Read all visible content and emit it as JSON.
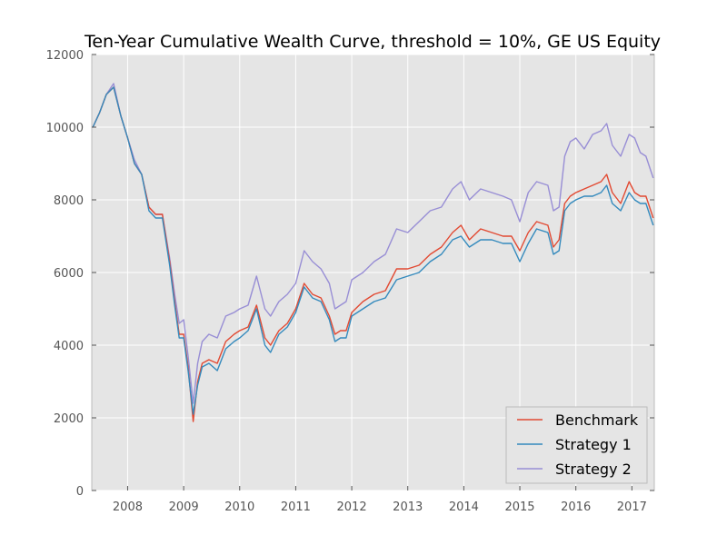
{
  "chart_data": {
    "type": "line",
    "title": "Ten-Year Cumulative Wealth Curve, threshold = 10%, GE US Equity",
    "xlabel": "",
    "ylabel": "",
    "xlim": [
      2007.36,
      2017.4
    ],
    "ylim": [
      0,
      12000
    ],
    "x_ticks": [
      2008,
      2009,
      2010,
      2011,
      2012,
      2013,
      2014,
      2015,
      2016,
      2017
    ],
    "x_tick_labels": [
      "2008",
      "2009",
      "2010",
      "2011",
      "2012",
      "2013",
      "2014",
      "2015",
      "2016",
      "2017"
    ],
    "y_ticks": [
      0,
      2000,
      4000,
      6000,
      8000,
      10000,
      12000
    ],
    "y_tick_labels": [
      "0",
      "2000",
      "4000",
      "6000",
      "8000",
      "10000",
      "12000"
    ],
    "grid": true,
    "legend_position": "lower-right",
    "background": "#e5e5e5",
    "series": [
      {
        "name": "Benchmark",
        "color": "#e24a33",
        "x": [
          2007.38,
          2007.5,
          2007.62,
          2007.75,
          2007.88,
          2008.0,
          2008.12,
          2008.25,
          2008.38,
          2008.5,
          2008.62,
          2008.75,
          2008.84,
          2008.92,
          2009.0,
          2009.08,
          2009.17,
          2009.25,
          2009.33,
          2009.45,
          2009.6,
          2009.75,
          2009.9,
          2010.0,
          2010.15,
          2010.3,
          2010.45,
          2010.55,
          2010.7,
          2010.85,
          2011.0,
          2011.15,
          2011.3,
          2011.45,
          2011.6,
          2011.7,
          2011.8,
          2011.9,
          2012.0,
          2012.2,
          2012.4,
          2012.6,
          2012.8,
          2013.0,
          2013.2,
          2013.4,
          2013.6,
          2013.8,
          2013.95,
          2014.1,
          2014.3,
          2014.5,
          2014.7,
          2014.85,
          2015.0,
          2015.15,
          2015.3,
          2015.5,
          2015.6,
          2015.7,
          2015.8,
          2015.9,
          2016.0,
          2016.15,
          2016.3,
          2016.45,
          2016.55,
          2016.65,
          2016.8,
          2016.95,
          2017.05,
          2017.15,
          2017.25,
          2017.38
        ],
        "values": [
          10000,
          10400,
          10900,
          11100,
          10300,
          9700,
          9000,
          8700,
          7800,
          7600,
          7600,
          6300,
          5200,
          4300,
          4300,
          3400,
          1900,
          3000,
          3500,
          3600,
          3500,
          4100,
          4300,
          4400,
          4500,
          5100,
          4200,
          4000,
          4400,
          4600,
          5000,
          5700,
          5400,
          5300,
          4800,
          4300,
          4400,
          4400,
          4900,
          5200,
          5400,
          5500,
          6100,
          6100,
          6200,
          6500,
          6700,
          7100,
          7300,
          6900,
          7200,
          7100,
          7000,
          7000,
          6600,
          7100,
          7400,
          7300,
          6700,
          6900,
          7900,
          8100,
          8200,
          8300,
          8400,
          8500,
          8700,
          8200,
          7900,
          8500,
          8200,
          8100,
          8100,
          7500
        ]
      },
      {
        "name": "Strategy 1",
        "color": "#348abd",
        "x": [
          2007.38,
          2007.5,
          2007.62,
          2007.75,
          2007.88,
          2008.0,
          2008.12,
          2008.25,
          2008.38,
          2008.5,
          2008.62,
          2008.75,
          2008.84,
          2008.92,
          2009.0,
          2009.08,
          2009.17,
          2009.25,
          2009.33,
          2009.45,
          2009.6,
          2009.75,
          2009.9,
          2010.0,
          2010.15,
          2010.3,
          2010.45,
          2010.55,
          2010.7,
          2010.85,
          2011.0,
          2011.15,
          2011.3,
          2011.45,
          2011.6,
          2011.7,
          2011.8,
          2011.9,
          2012.0,
          2012.2,
          2012.4,
          2012.6,
          2012.8,
          2013.0,
          2013.2,
          2013.4,
          2013.6,
          2013.8,
          2013.95,
          2014.1,
          2014.3,
          2014.5,
          2014.7,
          2014.85,
          2015.0,
          2015.15,
          2015.3,
          2015.5,
          2015.6,
          2015.7,
          2015.8,
          2015.9,
          2016.0,
          2016.15,
          2016.3,
          2016.45,
          2016.55,
          2016.65,
          2016.8,
          2016.95,
          2017.05,
          2017.15,
          2017.25,
          2017.38
        ],
        "values": [
          10000,
          10400,
          10900,
          11100,
          10300,
          9700,
          9000,
          8700,
          7700,
          7500,
          7500,
          6200,
          5100,
          4200,
          4200,
          3300,
          2100,
          2900,
          3400,
          3500,
          3300,
          3900,
          4100,
          4200,
          4400,
          5000,
          4000,
          3800,
          4300,
          4500,
          4900,
          5600,
          5300,
          5200,
          4700,
          4100,
          4200,
          4200,
          4800,
          5000,
          5200,
          5300,
          5800,
          5900,
          6000,
          6300,
          6500,
          6900,
          7000,
          6700,
          6900,
          6900,
          6800,
          6800,
          6300,
          6800,
          7200,
          7100,
          6500,
          6600,
          7700,
          7900,
          8000,
          8100,
          8100,
          8200,
          8400,
          7900,
          7700,
          8200,
          8000,
          7900,
          7900,
          7300
        ]
      },
      {
        "name": "Strategy 2",
        "color": "#988ed5",
        "x": [
          2007.38,
          2007.5,
          2007.62,
          2007.75,
          2007.88,
          2008.0,
          2008.12,
          2008.25,
          2008.38,
          2008.5,
          2008.62,
          2008.75,
          2008.84,
          2008.92,
          2009.0,
          2009.08,
          2009.17,
          2009.25,
          2009.33,
          2009.45,
          2009.6,
          2009.75,
          2009.9,
          2010.0,
          2010.15,
          2010.3,
          2010.45,
          2010.55,
          2010.7,
          2010.85,
          2011.0,
          2011.15,
          2011.3,
          2011.45,
          2011.6,
          2011.7,
          2011.8,
          2011.9,
          2012.0,
          2012.2,
          2012.4,
          2012.6,
          2012.8,
          2013.0,
          2013.2,
          2013.4,
          2013.6,
          2013.8,
          2013.95,
          2014.1,
          2014.3,
          2014.5,
          2014.7,
          2014.85,
          2015.0,
          2015.15,
          2015.3,
          2015.5,
          2015.6,
          2015.7,
          2015.8,
          2015.9,
          2016.0,
          2016.15,
          2016.3,
          2016.45,
          2016.55,
          2016.65,
          2016.8,
          2016.95,
          2017.05,
          2017.15,
          2017.25,
          2017.38
        ],
        "values": [
          10000,
          10400,
          10900,
          11200,
          10300,
          9700,
          9100,
          8700,
          7800,
          7600,
          7600,
          6400,
          5400,
          4600,
          4700,
          3700,
          2400,
          3500,
          4100,
          4300,
          4200,
          4800,
          4900,
          5000,
          5100,
          5900,
          5000,
          4800,
          5200,
          5400,
          5700,
          6600,
          6300,
          6100,
          5700,
          5000,
          5100,
          5200,
          5800,
          6000,
          6300,
          6500,
          7200,
          7100,
          7400,
          7700,
          7800,
          8300,
          8500,
          8000,
          8300,
          8200,
          8100,
          8000,
          7400,
          8200,
          8500,
          8400,
          7700,
          7800,
          9200,
          9600,
          9700,
          9400,
          9800,
          9900,
          10100,
          9500,
          9200,
          9800,
          9700,
          9300,
          9200,
          8600
        ]
      }
    ]
  }
}
